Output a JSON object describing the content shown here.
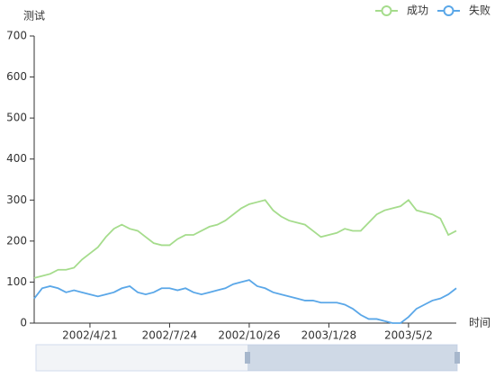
{
  "chart_data": {
    "type": "line",
    "y_axis_label": "测试",
    "x_axis_label": "时间",
    "categories": [
      null,
      null,
      null,
      null,
      null,
      null,
      null,
      "2002/4/21",
      null,
      null,
      null,
      null,
      null,
      null,
      null,
      null,
      null,
      "2002/7/24",
      null,
      null,
      null,
      null,
      null,
      null,
      null,
      null,
      null,
      "2002/10/26",
      null,
      null,
      null,
      null,
      null,
      null,
      null,
      null,
      null,
      "2003/1/28",
      null,
      null,
      null,
      null,
      null,
      null,
      null,
      null,
      null,
      "2003/5/2",
      null,
      null,
      null,
      null,
      null,
      null
    ],
    "series": [
      {
        "name": "成功",
        "color": "#a5dc8c",
        "values": [
          110,
          115,
          120,
          130,
          130,
          135,
          155,
          170,
          185,
          210,
          230,
          240,
          230,
          225,
          210,
          195,
          190,
          190,
          205,
          215,
          215,
          225,
          235,
          240,
          250,
          265,
          280,
          290,
          295,
          300,
          275,
          260,
          250,
          245,
          240,
          225,
          210,
          215,
          220,
          230,
          225,
          225,
          245,
          265,
          275,
          280,
          285,
          300,
          275,
          270,
          265,
          255,
          215,
          225
        ]
      },
      {
        "name": "失败",
        "color": "#5aa7e8",
        "values": [
          60,
          85,
          90,
          85,
          75,
          80,
          75,
          70,
          65,
          70,
          75,
          85,
          90,
          75,
          70,
          75,
          85,
          85,
          80,
          85,
          75,
          70,
          75,
          80,
          85,
          95,
          100,
          105,
          90,
          85,
          75,
          70,
          65,
          60,
          55,
          55,
          50,
          50,
          50,
          45,
          35,
          20,
          10,
          10,
          5,
          0,
          0,
          15,
          35,
          45,
          55,
          60,
          70,
          85
        ]
      }
    ],
    "ylim": [
      0,
      700
    ],
    "yticks": [
      0,
      100,
      200,
      300,
      400,
      500,
      600,
      700
    ],
    "legend_position": "top-right"
  }
}
